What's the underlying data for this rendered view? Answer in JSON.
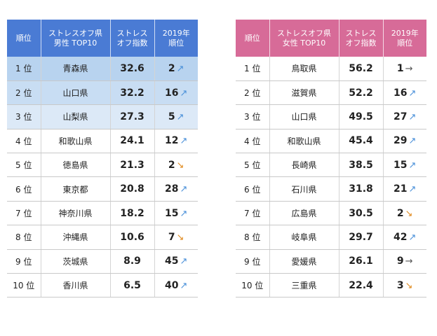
{
  "male": {
    "headers": {
      "rank": "順位",
      "pref_line1": "ストレスオフ県",
      "pref_line2": "男性 TOP10",
      "score_line1": "ストレス",
      "score_line2": "オフ指数",
      "prev_line1": "2019年",
      "prev_line2": "順位"
    },
    "rows": [
      {
        "rank": "1 位",
        "pref": "青森県",
        "score": "32.6",
        "prev": "2",
        "trend": "up"
      },
      {
        "rank": "2 位",
        "pref": "山口県",
        "score": "32.2",
        "prev": "16",
        "trend": "up"
      },
      {
        "rank": "3 位",
        "pref": "山梨県",
        "score": "27.3",
        "prev": "5",
        "trend": "up"
      },
      {
        "rank": "4 位",
        "pref": "和歌山県",
        "score": "24.1",
        "prev": "12",
        "trend": "up"
      },
      {
        "rank": "5 位",
        "pref": "徳島県",
        "score": "21.3",
        "prev": "2",
        "trend": "down"
      },
      {
        "rank": "6 位",
        "pref": "東京都",
        "score": "20.8",
        "prev": "28",
        "trend": "up"
      },
      {
        "rank": "7 位",
        "pref": "神奈川県",
        "score": "18.2",
        "prev": "15",
        "trend": "up"
      },
      {
        "rank": "8 位",
        "pref": "沖縄県",
        "score": "10.6",
        "prev": "7",
        "trend": "down"
      },
      {
        "rank": "9 位",
        "pref": "茨城県",
        "score": "8.9",
        "prev": "45",
        "trend": "up"
      },
      {
        "rank": "10 位",
        "pref": "香川県",
        "score": "6.5",
        "prev": "40",
        "trend": "up"
      }
    ]
  },
  "female": {
    "headers": {
      "rank": "順位",
      "pref_line1": "ストレスオフ県",
      "pref_line2": "女性 TOP10",
      "score_line1": "ストレス",
      "score_line2": "オフ指数",
      "prev_line1": "2019年",
      "prev_line2": "順位"
    },
    "rows": [
      {
        "rank": "1 位",
        "pref": "鳥取県",
        "score": "56.2",
        "prev": "1",
        "trend": "flat"
      },
      {
        "rank": "2 位",
        "pref": "滋賀県",
        "score": "52.2",
        "prev": "16",
        "trend": "up"
      },
      {
        "rank": "3 位",
        "pref": "山口県",
        "score": "49.5",
        "prev": "27",
        "trend": "up"
      },
      {
        "rank": "4 位",
        "pref": "和歌山県",
        "score": "45.4",
        "prev": "29",
        "trend": "up"
      },
      {
        "rank": "5 位",
        "pref": "長崎県",
        "score": "38.5",
        "prev": "15",
        "trend": "up"
      },
      {
        "rank": "6 位",
        "pref": "石川県",
        "score": "31.8",
        "prev": "21",
        "trend": "up"
      },
      {
        "rank": "7 位",
        "pref": "広島県",
        "score": "30.5",
        "prev": "2",
        "trend": "down"
      },
      {
        "rank": "8 位",
        "pref": "岐阜県",
        "score": "29.7",
        "prev": "42",
        "trend": "up"
      },
      {
        "rank": "9 位",
        "pref": "愛媛県",
        "score": "26.1",
        "prev": "9",
        "trend": "flat"
      },
      {
        "rank": "10 位",
        "pref": "三重県",
        "score": "22.4",
        "prev": "3",
        "trend": "down"
      }
    ]
  },
  "colors": {
    "male_header": "#4a7bd4",
    "female_header": "#d76b98",
    "arrow_up": "#4a90d9",
    "arrow_down": "#e08a1e",
    "arrow_flat": "#555555"
  }
}
